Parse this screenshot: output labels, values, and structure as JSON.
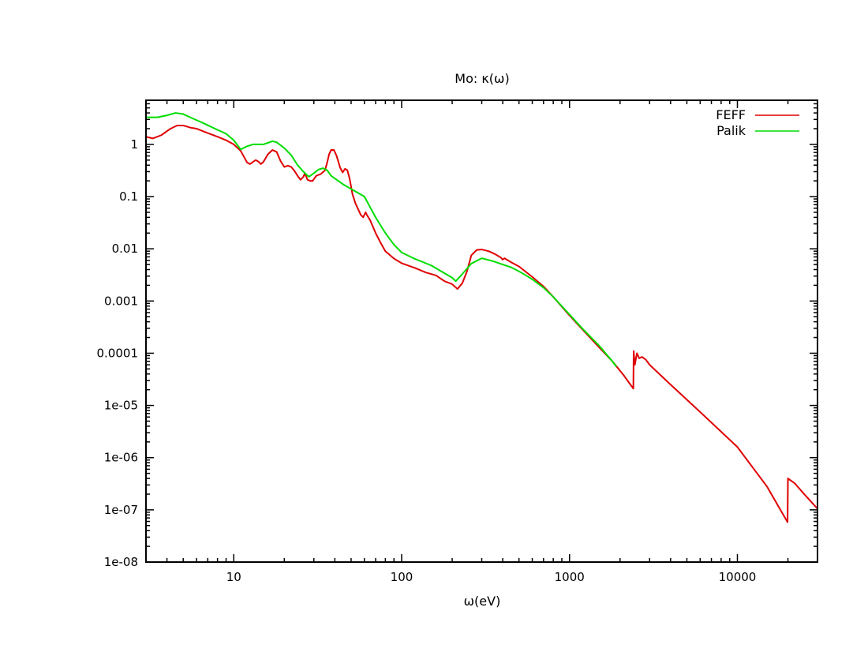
{
  "chart_data": {
    "type": "line",
    "title": "Mo: κ(ω)",
    "xlabel": "ω(eV)",
    "ylabel": "",
    "xscale": "log",
    "yscale": "log",
    "xlim": [
      3,
      30000
    ],
    "ylim": [
      1e-08,
      7
    ],
    "x_ticks": [
      {
        "value": 10,
        "label": "10"
      },
      {
        "value": 100,
        "label": "100"
      },
      {
        "value": 1000,
        "label": "1000"
      },
      {
        "value": 10000,
        "label": "10000"
      }
    ],
    "y_ticks": [
      {
        "value": 1e-08,
        "label": "1e-08"
      },
      {
        "value": 1e-07,
        "label": "1e-07"
      },
      {
        "value": 1e-06,
        "label": "1e-06"
      },
      {
        "value": 1e-05,
        "label": "1e-05"
      },
      {
        "value": 0.0001,
        "label": "0.0001"
      },
      {
        "value": 0.001,
        "label": "0.001"
      },
      {
        "value": 0.01,
        "label": "0.01"
      },
      {
        "value": 0.1,
        "label": "0.1"
      },
      {
        "value": 1,
        "label": "1"
      }
    ],
    "grid": false,
    "legend": "top-right",
    "series": [
      {
        "name": "FEFF",
        "color": "#e00000",
        "points": [
          [
            3.0,
            1.4
          ],
          [
            3.3,
            1.3
          ],
          [
            3.7,
            1.5
          ],
          [
            4.2,
            2.0
          ],
          [
            4.6,
            2.3
          ],
          [
            5.0,
            2.3
          ],
          [
            5.5,
            2.1
          ],
          [
            6.0,
            2.0
          ],
          [
            7.0,
            1.65
          ],
          [
            8.0,
            1.4
          ],
          [
            9.0,
            1.2
          ],
          [
            10.0,
            1.0
          ],
          [
            11.0,
            0.75
          ],
          [
            12.0,
            0.45
          ],
          [
            12.5,
            0.42
          ],
          [
            13.0,
            0.46
          ],
          [
            13.5,
            0.5
          ],
          [
            14.0,
            0.47
          ],
          [
            14.5,
            0.42
          ],
          [
            15.0,
            0.46
          ],
          [
            16.0,
            0.65
          ],
          [
            17.0,
            0.78
          ],
          [
            18.0,
            0.72
          ],
          [
            19.0,
            0.48
          ],
          [
            20.0,
            0.37
          ],
          [
            21.0,
            0.39
          ],
          [
            22.0,
            0.37
          ],
          [
            23.0,
            0.31
          ],
          [
            24.0,
            0.25
          ],
          [
            25.0,
            0.21
          ],
          [
            26.0,
            0.24
          ],
          [
            26.5,
            0.28
          ],
          [
            27.5,
            0.21
          ],
          [
            28.5,
            0.2
          ],
          [
            29.5,
            0.2
          ],
          [
            31.0,
            0.25
          ],
          [
            33.0,
            0.27
          ],
          [
            35.0,
            0.32
          ],
          [
            36.0,
            0.45
          ],
          [
            37.0,
            0.65
          ],
          [
            38.0,
            0.78
          ],
          [
            39.5,
            0.78
          ],
          [
            41.0,
            0.6
          ],
          [
            43.0,
            0.36
          ],
          [
            44.5,
            0.29
          ],
          [
            46.0,
            0.34
          ],
          [
            47.5,
            0.32
          ],
          [
            49.0,
            0.22
          ],
          [
            51.0,
            0.11
          ],
          [
            53.0,
            0.075
          ],
          [
            55.0,
            0.058
          ],
          [
            57.0,
            0.045
          ],
          [
            59.0,
            0.04
          ],
          [
            61.0,
            0.05
          ],
          [
            62.0,
            0.045
          ],
          [
            65.0,
            0.035
          ],
          [
            70.0,
            0.02
          ],
          [
            75.0,
            0.013
          ],
          [
            80.0,
            0.009
          ],
          [
            90.0,
            0.0065
          ],
          [
            100.0,
            0.0053
          ],
          [
            120.0,
            0.0043
          ],
          [
            140.0,
            0.0035
          ],
          [
            160.0,
            0.0031
          ],
          [
            180.0,
            0.0024
          ],
          [
            200.0,
            0.0021
          ],
          [
            215.0,
            0.0017
          ],
          [
            230.0,
            0.0022
          ],
          [
            245.0,
            0.0037
          ],
          [
            260.0,
            0.0075
          ],
          [
            280.0,
            0.0095
          ],
          [
            300.0,
            0.0097
          ],
          [
            330.0,
            0.009
          ],
          [
            360.0,
            0.0079
          ],
          [
            390.0,
            0.0068
          ],
          [
            400.0,
            0.0062
          ],
          [
            410.0,
            0.0066
          ],
          [
            450.0,
            0.0055
          ],
          [
            500.0,
            0.0046
          ],
          [
            550.0,
            0.0036
          ],
          [
            600.0,
            0.0029
          ],
          [
            700.0,
            0.0019
          ],
          [
            800.0,
            0.0012
          ],
          [
            1000.0,
            0.00053
          ],
          [
            1200.0,
            0.00028
          ],
          [
            1500.0,
            0.00013
          ],
          [
            1800.0,
            7e-05
          ],
          [
            2100.0,
            3.8e-05
          ],
          [
            2400.0,
            2.1e-05
          ],
          [
            2410.0,
            0.00011
          ],
          [
            2450.0,
            6e-05
          ],
          [
            2520.0,
            0.0001
          ],
          [
            2600.0,
            8e-05
          ],
          [
            2700.0,
            8.5e-05
          ],
          [
            2850.0,
            7.5e-05
          ],
          [
            3000.0,
            6e-05
          ],
          [
            4000.0,
            2.5e-05
          ],
          [
            6000.0,
            7.5e-06
          ],
          [
            10000.0,
            1.6e-06
          ],
          [
            15000.0,
            2.8e-07
          ],
          [
            19900.0,
            5.8e-08
          ],
          [
            20000.0,
            4e-07
          ],
          [
            22000.0,
            3.2e-07
          ],
          [
            25000.0,
            2e-07
          ],
          [
            30000.0,
            1.05e-07
          ]
        ]
      },
      {
        "name": "Palik",
        "color": "#00dd00",
        "points": [
          [
            3.0,
            3.3
          ],
          [
            3.5,
            3.3
          ],
          [
            4.0,
            3.6
          ],
          [
            4.5,
            4.0
          ],
          [
            5.0,
            3.8
          ],
          [
            5.5,
            3.3
          ],
          [
            6.5,
            2.6
          ],
          [
            8.0,
            1.9
          ],
          [
            9.0,
            1.6
          ],
          [
            10.0,
            1.2
          ],
          [
            11.0,
            0.8
          ],
          [
            12.0,
            0.92
          ],
          [
            13.0,
            1.0
          ],
          [
            15.0,
            1.0
          ],
          [
            17.0,
            1.15
          ],
          [
            18.0,
            1.1
          ],
          [
            20.0,
            0.85
          ],
          [
            22.0,
            0.62
          ],
          [
            24.0,
            0.4
          ],
          [
            26.0,
            0.3
          ],
          [
            28.0,
            0.24
          ],
          [
            30.0,
            0.28
          ],
          [
            32.0,
            0.33
          ],
          [
            34.0,
            0.35
          ],
          [
            36.0,
            0.32
          ],
          [
            38.0,
            0.25
          ],
          [
            45.0,
            0.17
          ],
          [
            50.0,
            0.14
          ],
          [
            60.0,
            0.1
          ],
          [
            70.0,
            0.04
          ],
          [
            80.0,
            0.02
          ],
          [
            90.0,
            0.012
          ],
          [
            100.0,
            0.0085
          ],
          [
            120.0,
            0.0064
          ],
          [
            150.0,
            0.0048
          ],
          [
            180.0,
            0.0034
          ],
          [
            200.0,
            0.0028
          ],
          [
            210.0,
            0.0024
          ],
          [
            230.0,
            0.0033
          ],
          [
            260.0,
            0.0052
          ],
          [
            300.0,
            0.0066
          ],
          [
            350.0,
            0.0058
          ],
          [
            400.0,
            0.005
          ],
          [
            450.0,
            0.0044
          ],
          [
            500.0,
            0.0037
          ],
          [
            550.0,
            0.0031
          ],
          [
            600.0,
            0.0026
          ],
          [
            700.0,
            0.0018
          ],
          [
            800.0,
            0.0012
          ],
          [
            1000.0,
            0.00055
          ],
          [
            1200.0,
            0.00029
          ],
          [
            1500.0,
            0.00014
          ],
          [
            1800.0,
            7e-05
          ],
          [
            1900.0,
            5.5e-05
          ]
        ]
      }
    ]
  }
}
